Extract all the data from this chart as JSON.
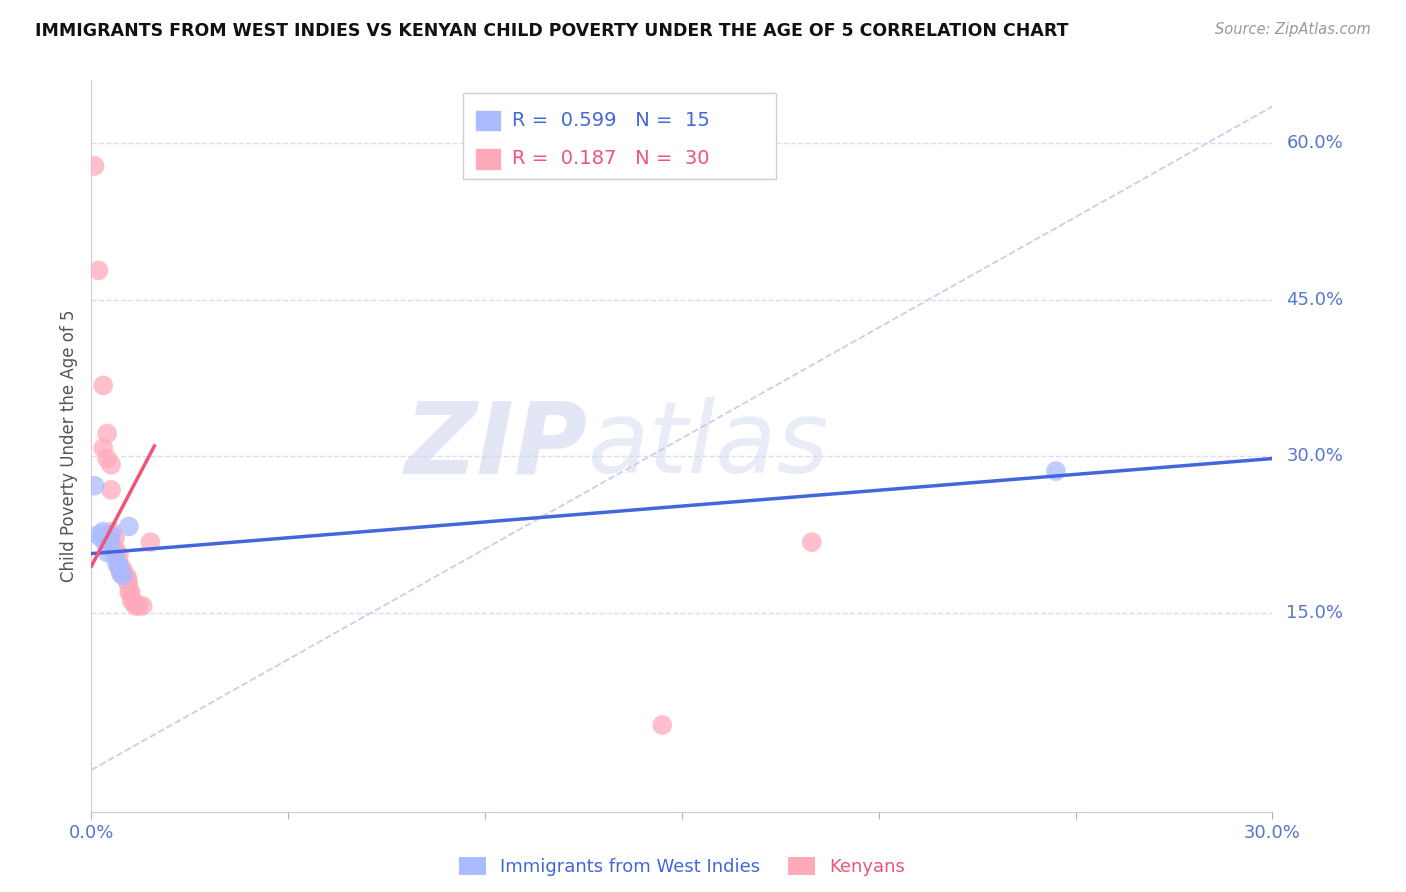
{
  "title": "IMMIGRANTS FROM WEST INDIES VS KENYAN CHILD POVERTY UNDER THE AGE OF 5 CORRELATION CHART",
  "source": "Source: ZipAtlas.com",
  "ylabel": "Child Poverty Under the Age of 5",
  "xlim": [
    0.0,
    0.3
  ],
  "ylim": [
    -0.04,
    0.66
  ],
  "xticks": [
    0.0,
    0.05,
    0.1,
    0.15,
    0.2,
    0.25,
    0.3
  ],
  "xtick_labels": [
    "0.0%",
    "",
    "",
    "",
    "",
    "",
    "30.0%"
  ],
  "ytick_right_vals": [
    0.15,
    0.3,
    0.45,
    0.6
  ],
  "ytick_right_labels": [
    "15.0%",
    "30.0%",
    "45.0%",
    "60.0%"
  ],
  "blue_r": "0.599",
  "blue_n": "15",
  "pink_r": "0.187",
  "pink_n": "30",
  "legend_label_blue": "Immigrants from West Indies",
  "legend_label_pink": "Kenyans",
  "blue_fill_color": "#aabbff",
  "pink_fill_color": "#ffaabb",
  "blue_line_color": "#4466dd",
  "pink_line_color": "#ee5577",
  "dashed_line_color": "#ccccee",
  "grid_color": "#ddddee",
  "title_color": "#111111",
  "source_color": "#999999",
  "axis_color": "#5577cc",
  "ylabel_color": "#555555",
  "blue_scatter": [
    [
      0.0008,
      0.272
    ],
    [
      0.0018,
      0.225
    ],
    [
      0.0025,
      0.222
    ],
    [
      0.003,
      0.228
    ],
    [
      0.0038,
      0.215
    ],
    [
      0.004,
      0.208
    ],
    [
      0.0048,
      0.218
    ],
    [
      0.005,
      0.225
    ],
    [
      0.006,
      0.205
    ],
    [
      0.0065,
      0.197
    ],
    [
      0.007,
      0.196
    ],
    [
      0.0075,
      0.188
    ],
    [
      0.008,
      0.186
    ],
    [
      0.0095,
      0.233
    ],
    [
      0.245,
      0.286
    ]
  ],
  "pink_scatter": [
    [
      0.0008,
      0.578
    ],
    [
      0.0018,
      0.478
    ],
    [
      0.003,
      0.368
    ],
    [
      0.003,
      0.308
    ],
    [
      0.004,
      0.322
    ],
    [
      0.004,
      0.298
    ],
    [
      0.005,
      0.292
    ],
    [
      0.005,
      0.268
    ],
    [
      0.0052,
      0.228
    ],
    [
      0.006,
      0.222
    ],
    [
      0.006,
      0.212
    ],
    [
      0.0062,
      0.208
    ],
    [
      0.007,
      0.206
    ],
    [
      0.007,
      0.198
    ],
    [
      0.0072,
      0.192
    ],
    [
      0.008,
      0.192
    ],
    [
      0.0082,
      0.188
    ],
    [
      0.009,
      0.185
    ],
    [
      0.0092,
      0.182
    ],
    [
      0.0094,
      0.178
    ],
    [
      0.0096,
      0.17
    ],
    [
      0.01,
      0.17
    ],
    [
      0.0102,
      0.162
    ],
    [
      0.011,
      0.16
    ],
    [
      0.0112,
      0.157
    ],
    [
      0.012,
      0.157
    ],
    [
      0.013,
      0.157
    ],
    [
      0.015,
      0.218
    ],
    [
      0.183,
      0.218
    ],
    [
      0.145,
      0.043
    ]
  ],
  "blue_trend_x": [
    0.0,
    0.3
  ],
  "blue_trend_y": [
    0.207,
    0.298
  ],
  "pink_trend_x": [
    0.0,
    0.016
  ],
  "pink_trend_y": [
    0.195,
    0.31
  ],
  "dashed_trend_x": [
    0.0,
    0.3
  ],
  "dashed_trend_y": [
    0.0,
    0.635
  ]
}
